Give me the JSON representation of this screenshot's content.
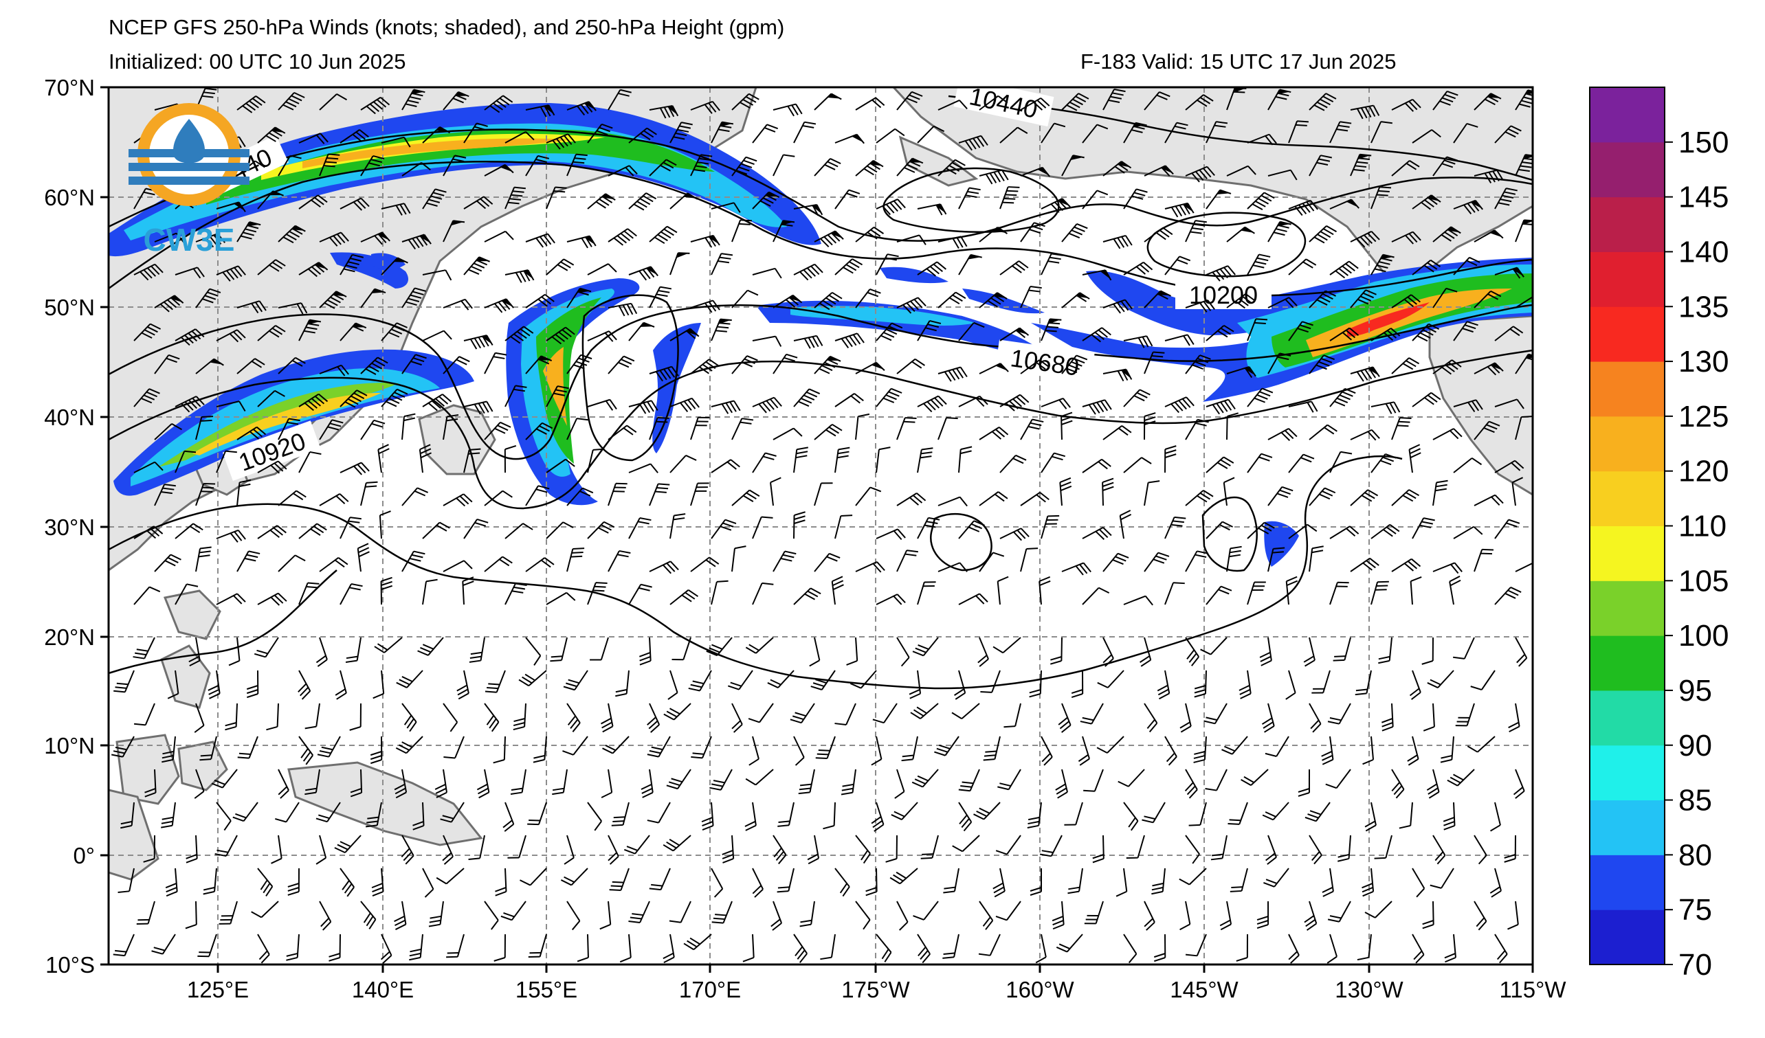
{
  "header": {
    "title": "NCEP GFS 250-hPa Winds (knots; shaded), and 250-hPa Height (gpm)",
    "initialized": "Initialized: 00 UTC 10 Jun 2025",
    "valid": "F-183  Valid: 15 UTC 17 Jun 2025"
  },
  "logo": {
    "text": "CW3E",
    "icon": "cw3e-logo-icon"
  },
  "axes": {
    "lat_labels": [
      "70°N",
      "60°N",
      "50°N",
      "40°N",
      "30°N",
      "20°N",
      "10°N",
      "0°",
      "10°S"
    ],
    "lon_labels": [
      "125°E",
      "140°E",
      "155°E",
      "170°E",
      "175°W",
      "160°W",
      "145°W",
      "130°W",
      "115°W"
    ]
  },
  "contour_labels": [
    "10440",
    "10440",
    "10920",
    "10200",
    "10680"
  ],
  "colorbar": {
    "labels": [
      "70",
      "75",
      "80",
      "85",
      "90",
      "95",
      "100",
      "105",
      "110",
      "120",
      "125",
      "130",
      "135",
      "140",
      "145",
      "150"
    ],
    "colors": [
      "#1c1fd0",
      "#1f47f0",
      "#23c3f5",
      "#1ff0ea",
      "#22dba6",
      "#1fbd1f",
      "#7ad12a",
      "#f5f520",
      "#f8cf1f",
      "#f8b01e",
      "#f6831f",
      "#f82920",
      "#e01f2f",
      "#ba1f4a",
      "#951f6e",
      "#7b229c"
    ]
  }
}
